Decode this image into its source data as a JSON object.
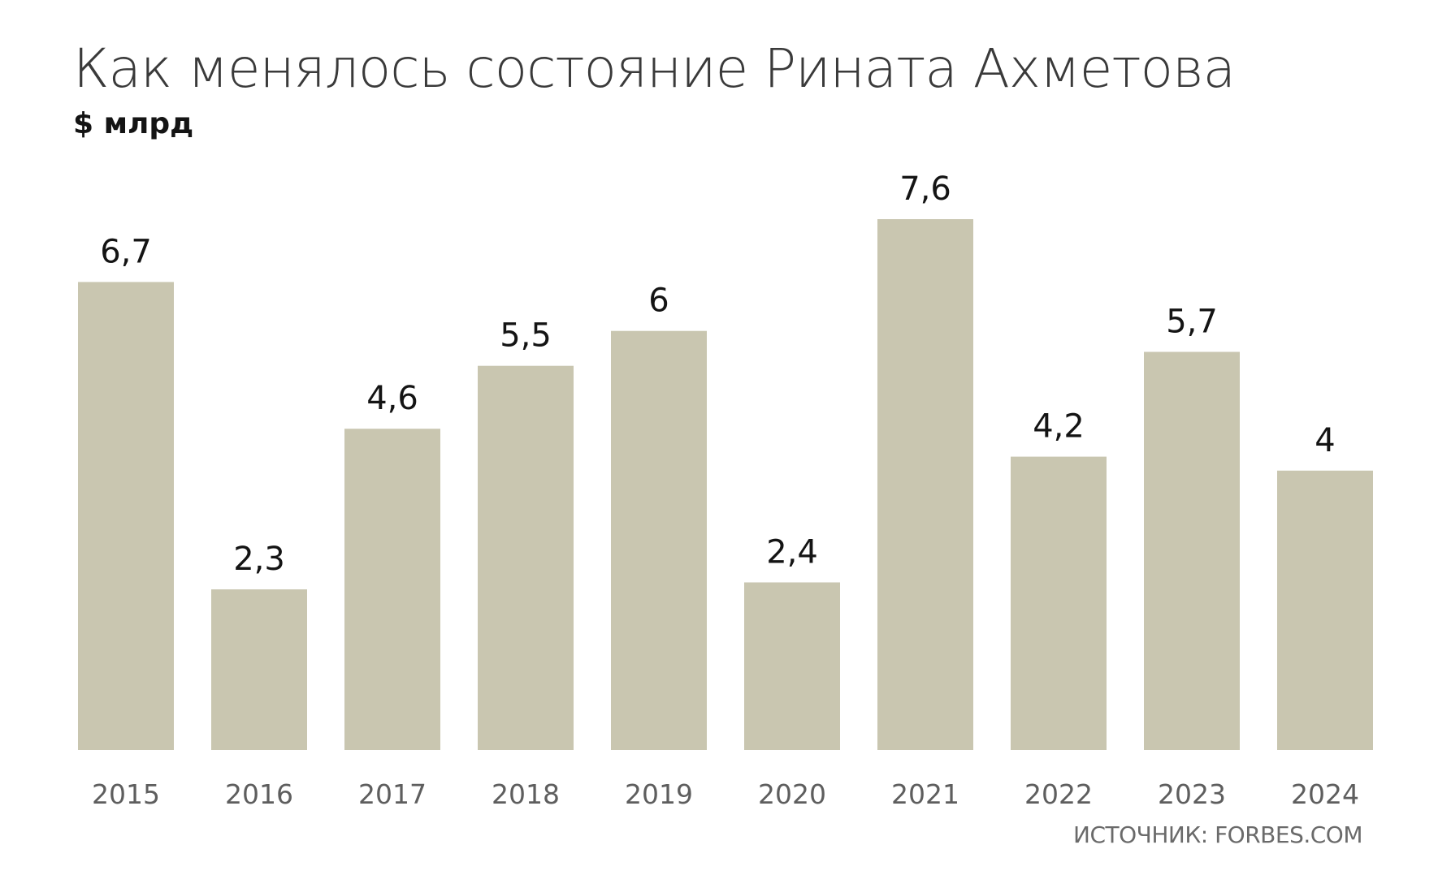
{
  "title": "Как менялось состояние Рината Ахметова",
  "subtitle": "$ млрд",
  "source": "ИСТОЧНИК: FORBES.COM",
  "colors": {
    "bar": "#c9c6b0",
    "value_label": "#141414",
    "tick_label": "#5e5e5e"
  },
  "chart_data": {
    "type": "bar",
    "title": "Как менялось состояние Рината Ахметова",
    "ylabel": "$ млрд",
    "xlabel": "",
    "categories": [
      "2015",
      "2016",
      "2017",
      "2018",
      "2019",
      "2020",
      "2021",
      "2022",
      "2023",
      "2024"
    ],
    "values": [
      6.7,
      2.3,
      4.6,
      5.5,
      6,
      2.4,
      7.6,
      4.2,
      5.7,
      4
    ],
    "value_labels": [
      "6,7",
      "2,3",
      "4,6",
      "5,5",
      "6",
      "2,4",
      "7,6",
      "4,2",
      "5,7",
      "4"
    ],
    "ylim": [
      0,
      7.6
    ],
    "grid": false,
    "legend": "none"
  }
}
